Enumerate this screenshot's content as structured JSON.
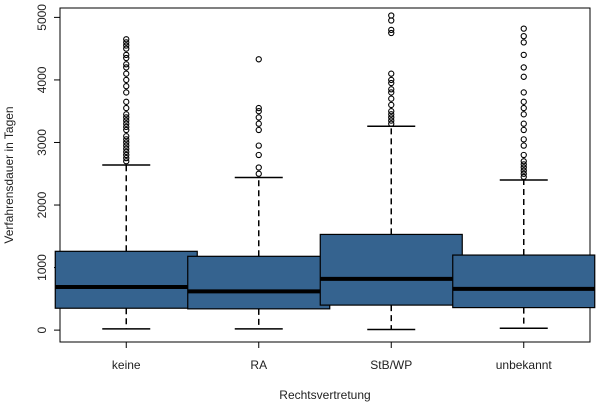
{
  "chart_data": {
    "type": "boxplot",
    "title": "",
    "xlabel": "Rechtsvertretung",
    "ylabel": "Verfahrensdauer in Tagen",
    "ylim": [
      -190,
      5150
    ],
    "yticks": [
      0,
      1000,
      2000,
      3000,
      4000,
      5000
    ],
    "grid": false,
    "box_color": "#35638F",
    "categories": [
      "keine",
      "RA",
      "StB/WP",
      "unbekannt"
    ],
    "boxes": [
      {
        "category": "keine",
        "whisker_low": 20,
        "q1": 350,
        "median": 690,
        "q3": 1260,
        "whisker_high": 2640,
        "outliers": [
          2700,
          2750,
          2800,
          2850,
          2900,
          2950,
          3000,
          3050,
          3100,
          3200,
          3250,
          3300,
          3350,
          3400,
          3450,
          3550,
          3650,
          3800,
          3900,
          4000,
          4100,
          4200,
          4250,
          4350,
          4400,
          4500,
          4550,
          4600,
          4650
        ]
      },
      {
        "category": "RA",
        "whisker_low": 20,
        "q1": 340,
        "median": 620,
        "q3": 1180,
        "whisker_high": 2440,
        "outliers": [
          2500,
          2600,
          2800,
          2950,
          3200,
          3300,
          3400,
          3500,
          3550,
          4330
        ]
      },
      {
        "category": "StB/WP",
        "whisker_low": 10,
        "q1": 400,
        "median": 820,
        "q3": 1530,
        "whisker_high": 3260,
        "outliers": [
          3300,
          3350,
          3400,
          3450,
          3500,
          3600,
          3700,
          3800,
          3850,
          3950,
          4000,
          4100,
          4750,
          4800,
          4950,
          5030
        ]
      },
      {
        "category": "unbekannt",
        "whisker_low": 30,
        "q1": 360,
        "median": 660,
        "q3": 1200,
        "whisker_high": 2400,
        "outliers": [
          2450,
          2500,
          2550,
          2600,
          2650,
          2700,
          2800,
          2950,
          3050,
          3200,
          3300,
          3450,
          3550,
          3650,
          3800,
          4050,
          4200,
          4400,
          4600,
          4700,
          4820
        ]
      }
    ]
  }
}
